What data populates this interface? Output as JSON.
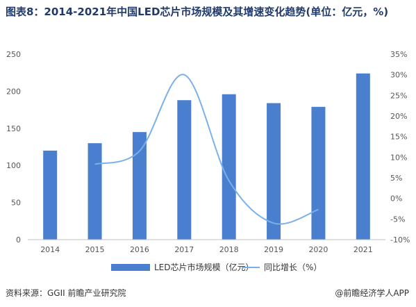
{
  "title": "图表8：2014-2021年中国LED芯片市场规模及其增速变化趋势(单位：亿元，%)",
  "source_label": "资料来源：GGII 前瞻产业研究院",
  "credit_label": "@前瞻经济学人APP",
  "watermark_text": "前瞻产业研究院",
  "colors": {
    "bar": "#4a7fd0",
    "line": "#7ab0e8",
    "axis": "#bfbfbf",
    "grid": "#e6e6e6"
  },
  "chart_data": {
    "type": "bar",
    "categories": [
      "2014",
      "2015",
      "2016",
      "2017",
      "2018",
      "2019",
      "2020",
      "2021"
    ],
    "series": [
      {
        "name": "LED芯片市场规模（亿元）",
        "type": "bar",
        "axis": "left",
        "values": [
          120,
          130,
          145,
          188,
          196,
          184,
          179,
          224
        ]
      },
      {
        "name": "同比增长（%）",
        "type": "line",
        "axis": "right",
        "values": [
          null,
          8.3,
          11.5,
          30,
          4.3,
          -6,
          -2.7,
          null
        ]
      }
    ],
    "y_left": {
      "ylim": [
        0,
        250
      ],
      "ticks": [
        "0",
        "50",
        "100",
        "150",
        "200",
        "250"
      ]
    },
    "y_right": {
      "ylim": [
        -10,
        35
      ],
      "ticks": [
        "-10%",
        "-5%",
        "0%",
        "5%",
        "10%",
        "15%",
        "20%",
        "25%",
        "30%",
        "35%"
      ]
    },
    "legend_position": "bottom"
  }
}
